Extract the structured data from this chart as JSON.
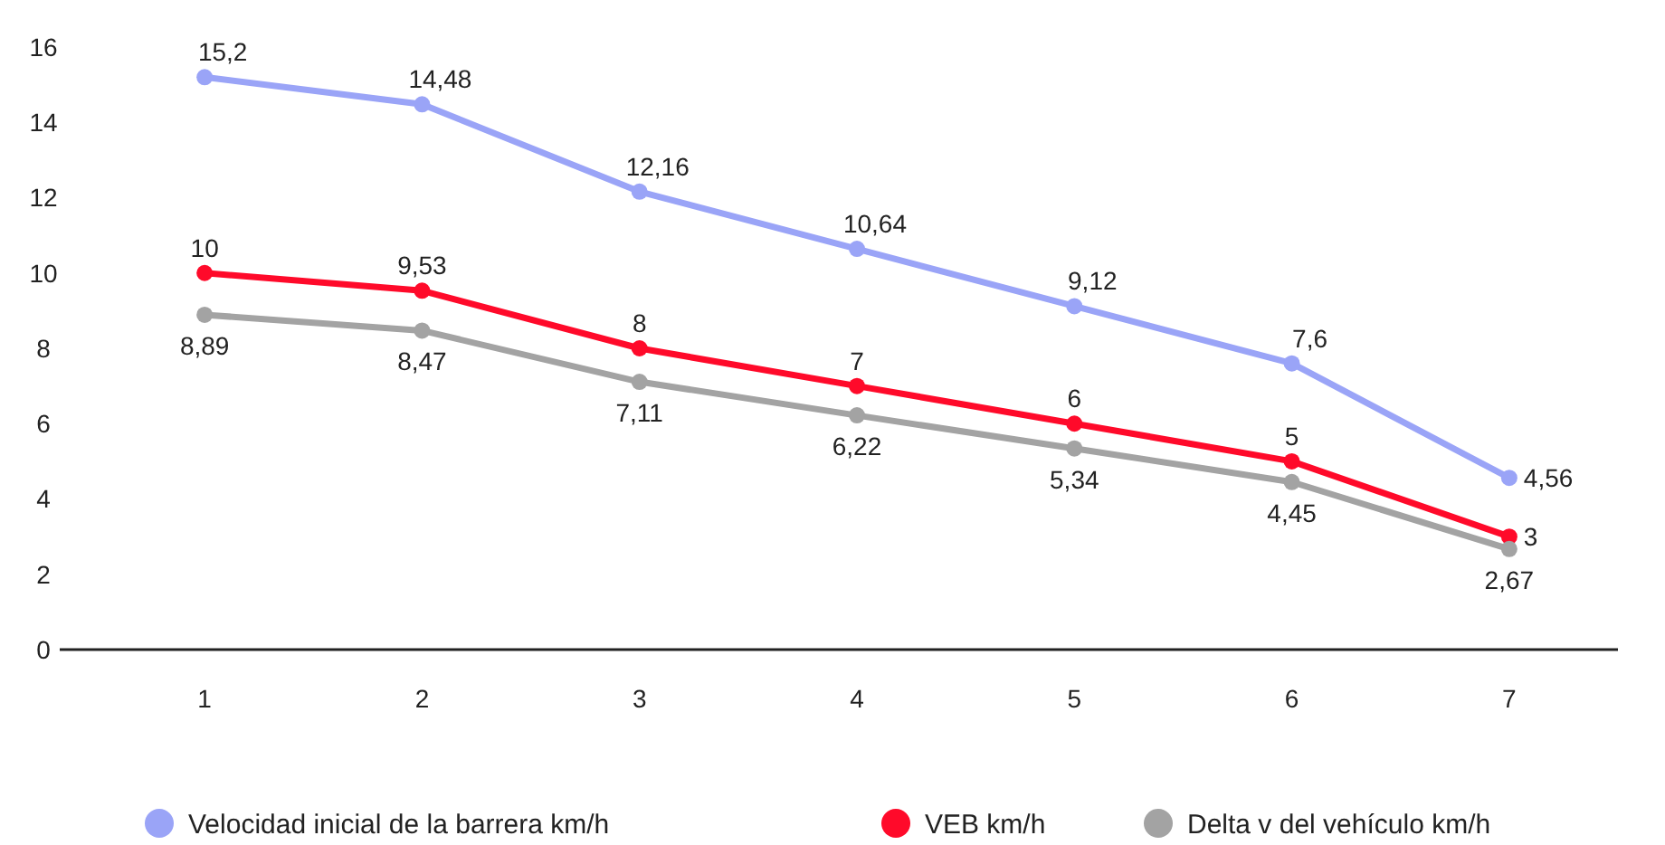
{
  "chart_data": {
    "type": "line",
    "categories": [
      "1",
      "2",
      "3",
      "4",
      "5",
      "6",
      "7"
    ],
    "series": [
      {
        "name": "Velocidad inicial de la barrera km/h",
        "color": "#9aa4f7",
        "values": [
          15.2,
          14.48,
          12.16,
          10.64,
          9.12,
          7.6,
          4.56
        ],
        "value_labels": [
          "15,2",
          "14,48",
          "12,16",
          "10,64",
          "9,12",
          "7,6",
          "4,56"
        ]
      },
      {
        "name": "VEB km/h",
        "color": "#ff0a2a",
        "values": [
          10,
          9.53,
          8,
          7,
          6,
          5,
          3
        ],
        "value_labels": [
          "10",
          "9,53",
          "8",
          "7",
          "6",
          "5",
          "3"
        ]
      },
      {
        "name": "Delta  v del vehículo km/h",
        "color": "#a3a3a3",
        "values": [
          8.89,
          8.47,
          7.11,
          6.22,
          5.34,
          4.45,
          2.67
        ],
        "value_labels": [
          "8,89",
          "8,47",
          "7,11",
          "6,22",
          "5,34",
          "4,45",
          "2,67"
        ]
      }
    ],
    "ylim": [
      0,
      16
    ],
    "yticks": [
      0,
      2,
      4,
      6,
      8,
      10,
      12,
      14,
      16
    ],
    "grid": false,
    "legend": "bottom",
    "marker": "circle",
    "line_style": "solid"
  }
}
